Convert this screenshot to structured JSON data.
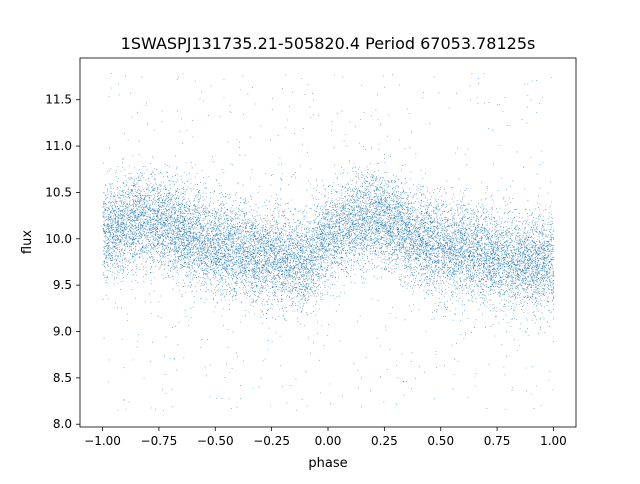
{
  "chart_data": {
    "type": "scatter",
    "title": "1SWASPJ131735.21-505820.4 Period 67053.78125s",
    "xlabel": "phase",
    "ylabel": "flux",
    "xlim": [
      -1.1,
      1.1
    ],
    "ylim": [
      7.97,
      11.95
    ],
    "xticks": [
      -1.0,
      -0.75,
      -0.5,
      -0.25,
      0.0,
      0.25,
      0.5,
      0.75,
      1.0
    ],
    "xtick_labels": [
      "−1.00",
      "−0.75",
      "−0.50",
      "−0.25",
      "0.00",
      "0.25",
      "0.50",
      "0.75",
      "1.00"
    ],
    "yticks": [
      8.0,
      8.5,
      9.0,
      9.5,
      10.0,
      10.5,
      11.0,
      11.5
    ],
    "ytick_labels": [
      "8.0",
      "8.5",
      "9.0",
      "9.5",
      "10.0",
      "10.5",
      "11.0",
      "11.5"
    ],
    "grid": false,
    "marker_color": "#1f77b4",
    "series": [
      {
        "x": [
          -1.0,
          -0.9,
          -0.8,
          -0.7,
          -0.6,
          -0.5,
          -0.4,
          -0.3,
          -0.2,
          -0.1,
          0.0,
          0.1,
          0.2,
          0.3,
          0.4,
          0.5,
          0.6,
          0.7,
          0.8,
          0.9,
          1.0
        ],
        "y_center": [
          10.05,
          10.15,
          10.22,
          10.15,
          10.0,
          9.9,
          9.88,
          9.82,
          9.78,
          9.72,
          10.05,
          10.15,
          10.22,
          10.15,
          10.0,
          9.9,
          9.88,
          9.82,
          9.78,
          9.72,
          9.75
        ],
        "y_spread": 0.25,
        "n_points": 16000,
        "outlier_range": [
          8.15,
          11.8
        ]
      }
    ]
  }
}
